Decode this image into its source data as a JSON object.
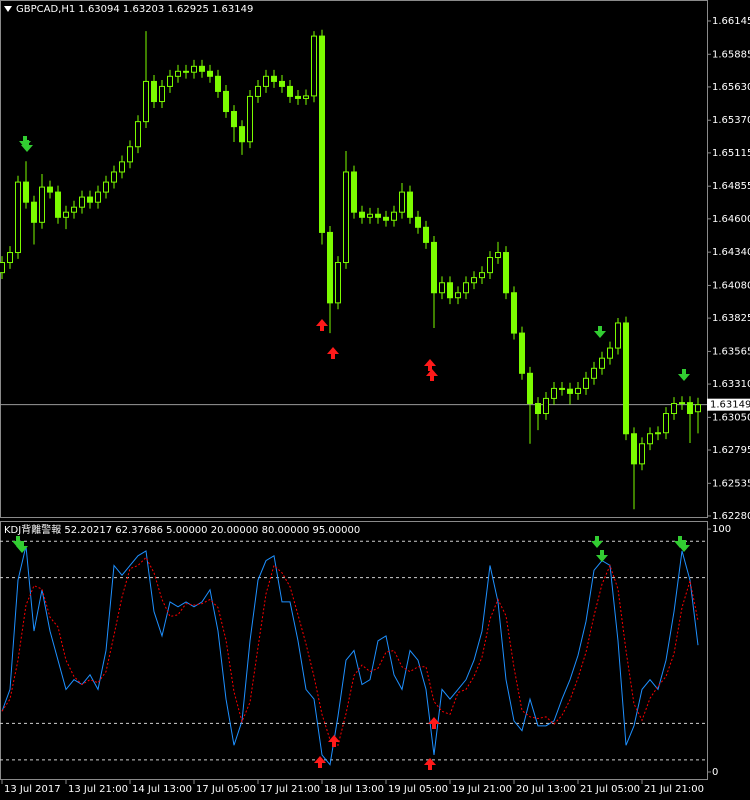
{
  "chart_data": [
    {
      "type": "candlestick",
      "title": "GBPCAD,H1  1.63094 1.63203 1.62925 1.63149",
      "color": "#7CFC00",
      "bull_fill": "#000000",
      "ylim": [
        1.62272,
        1.66301
      ],
      "yticks": [
        {
          "value": 1.66145,
          "label": "1.66145"
        },
        {
          "value": 1.65885,
          "label": "1.65885"
        },
        {
          "value": 1.6563,
          "label": "1.65630"
        },
        {
          "value": 1.6537,
          "label": "1.65370"
        },
        {
          "value": 1.65115,
          "label": "1.65115"
        },
        {
          "value": 1.64855,
          "label": "1.64855"
        },
        {
          "value": 1.646,
          "label": "1.64600"
        },
        {
          "value": 1.6434,
          "label": "1.64340"
        },
        {
          "value": 1.6408,
          "label": "1.64080"
        },
        {
          "value": 1.63825,
          "label": "1.63825"
        },
        {
          "value": 1.63565,
          "label": "1.63565"
        },
        {
          "value": 1.6331,
          "label": "1.63310"
        },
        {
          "value": 1.6305,
          "label": "1.63050"
        },
        {
          "value": 1.62795,
          "label": "1.62795"
        },
        {
          "value": 1.62535,
          "label": "1.62535"
        },
        {
          "value": 1.6228,
          "label": "1.62280"
        }
      ],
      "current_price": 1.63149,
      "open": [
        1.6418,
        1.64259,
        1.64337,
        1.64887,
        1.6473,
        1.64573,
        1.64848,
        1.64809,
        1.64612,
        1.64652,
        1.64691,
        1.6477,
        1.6473,
        1.64809,
        1.64887,
        1.64966,
        1.65045,
        1.65163,
        1.65359,
        1.65673,
        1.65516,
        1.65634,
        1.65713,
        1.65752,
        1.65745,
        1.65791,
        1.65752,
        1.65713,
        1.65595,
        1.65438,
        1.6532,
        1.65202,
        1.65556,
        1.65634,
        1.65713,
        1.65673,
        1.65634,
        1.65556,
        1.6554,
        1.6556,
        1.66027,
        1.64494,
        1.63944,
        1.64259,
        1.64966,
        1.64652,
        1.64612,
        1.64636,
        1.64612,
        1.64589,
        1.64652,
        1.64809,
        1.64612,
        1.64534,
        1.64416,
        1.64023,
        1.64101,
        1.63984,
        1.64023,
        1.64101,
        1.64141,
        1.6418,
        1.64298,
        1.64337,
        1.64023,
        1.63708,
        1.63394,
        1.63158,
        1.6308,
        1.63198,
        1.63276,
        1.6327,
        1.63237,
        1.63276,
        1.63355,
        1.63433,
        1.63512,
        1.63591,
        1.63787,
        1.62922,
        1.62687,
        1.62844,
        1.62922,
        1.6293,
        1.6308,
        1.63158,
        1.63165,
        1.63094
      ],
      "high": [
        1.64309,
        1.64387,
        1.64937,
        1.6505,
        1.6478,
        1.6495,
        1.64898,
        1.64859,
        1.64702,
        1.64741,
        1.6482,
        1.6482,
        1.64859,
        1.64937,
        1.65016,
        1.65095,
        1.65213,
        1.65409,
        1.66066,
        1.65723,
        1.65684,
        1.65763,
        1.65802,
        1.65802,
        1.65841,
        1.65841,
        1.65802,
        1.65763,
        1.65645,
        1.65488,
        1.6537,
        1.65606,
        1.65684,
        1.65763,
        1.65763,
        1.65723,
        1.65684,
        1.65606,
        1.6561,
        1.66066,
        1.66077,
        1.64544,
        1.64309,
        1.6513,
        1.65016,
        1.64702,
        1.64686,
        1.64686,
        1.64662,
        1.64702,
        1.6488,
        1.64859,
        1.64662,
        1.64584,
        1.64466,
        1.64151,
        1.64151,
        1.64073,
        1.64151,
        1.64191,
        1.6423,
        1.64348,
        1.6442,
        1.64387,
        1.64073,
        1.63758,
        1.63444,
        1.63208,
        1.63248,
        1.63326,
        1.63326,
        1.6332,
        1.63326,
        1.63405,
        1.63483,
        1.63562,
        1.63641,
        1.63826,
        1.63837,
        1.62972,
        1.62894,
        1.62972,
        1.6298,
        1.6313,
        1.63208,
        1.63215,
        1.63215,
        1.63203
      ],
      "low": [
        1.6413,
        1.64209,
        1.64287,
        1.6468,
        1.644,
        1.64523,
        1.64759,
        1.64562,
        1.6452,
        1.64602,
        1.64641,
        1.6468,
        1.6468,
        1.64759,
        1.64837,
        1.64916,
        1.64995,
        1.65113,
        1.65309,
        1.65466,
        1.65466,
        1.65584,
        1.65663,
        1.65695,
        1.65695,
        1.65702,
        1.65663,
        1.65545,
        1.65388,
        1.652,
        1.651,
        1.65152,
        1.65506,
        1.65584,
        1.65623,
        1.65584,
        1.65506,
        1.6549,
        1.6549,
        1.6551,
        1.644,
        1.63708,
        1.63894,
        1.64209,
        1.64602,
        1.64562,
        1.64562,
        1.64562,
        1.64539,
        1.64539,
        1.64602,
        1.64562,
        1.64484,
        1.64366,
        1.63748,
        1.63973,
        1.63934,
        1.63934,
        1.63973,
        1.64051,
        1.64091,
        1.6413,
        1.64248,
        1.63973,
        1.63658,
        1.63344,
        1.62844,
        1.6295,
        1.6303,
        1.63148,
        1.6322,
        1.6315,
        1.63187,
        1.63226,
        1.63305,
        1.63383,
        1.63462,
        1.63541,
        1.62872,
        1.62333,
        1.62637,
        1.62794,
        1.62872,
        1.6288,
        1.6303,
        1.63108,
        1.6285,
        1.62925
      ],
      "close": [
        1.64259,
        1.64337,
        1.64887,
        1.6473,
        1.64573,
        1.64848,
        1.64809,
        1.64612,
        1.64652,
        1.64691,
        1.6477,
        1.6473,
        1.64809,
        1.64887,
        1.64966,
        1.65045,
        1.65163,
        1.65359,
        1.65673,
        1.65516,
        1.65634,
        1.65713,
        1.65752,
        1.65745,
        1.65791,
        1.65752,
        1.65713,
        1.65595,
        1.65438,
        1.6532,
        1.65202,
        1.65556,
        1.65634,
        1.65713,
        1.65673,
        1.65634,
        1.65556,
        1.6554,
        1.6556,
        1.66027,
        1.64494,
        1.63944,
        1.64259,
        1.64966,
        1.64652,
        1.64612,
        1.64636,
        1.64612,
        1.64589,
        1.64652,
        1.64809,
        1.64612,
        1.64534,
        1.64416,
        1.64023,
        1.64101,
        1.63984,
        1.64023,
        1.64101,
        1.64141,
        1.6418,
        1.64298,
        1.64337,
        1.64023,
        1.63708,
        1.63394,
        1.63158,
        1.6308,
        1.63198,
        1.63276,
        1.6327,
        1.63237,
        1.63276,
        1.63355,
        1.63433,
        1.63512,
        1.63591,
        1.63787,
        1.62922,
        1.62687,
        1.62844,
        1.62922,
        1.6293,
        1.6308,
        1.63158,
        1.63165,
        1.6308,
        1.63149
      ]
    },
    {
      "type": "line",
      "title": "KDJ背離警報 52.20217 62.37686 5.00000 20.00000 80.00000 95.00000",
      "ylim": [
        -3.3,
        102.9
      ],
      "yticks": [
        0,
        100
      ],
      "levels": [
        5,
        20,
        80,
        95
      ],
      "categories": [
        "13 Jul 2017",
        null,
        null,
        null,
        null,
        null,
        null,
        null,
        "13 Jul 21:00",
        null,
        null,
        null,
        null,
        null,
        null,
        null,
        "14 Jul 13:00",
        null,
        null,
        null,
        null,
        null,
        null,
        null,
        "17 Jul 05:00",
        null,
        null,
        null,
        null,
        null,
        null,
        null,
        "17 Jul 21:00",
        null,
        null,
        null,
        null,
        null,
        null,
        null,
        "18 Jul 13:00",
        null,
        null,
        null,
        null,
        null,
        null,
        null,
        "19 Jul 05:00",
        null,
        null,
        null,
        null,
        null,
        null,
        null,
        "19 Jul 21:00",
        null,
        null,
        null,
        null,
        null,
        null,
        null,
        "20 Jul 13:00",
        null,
        null,
        null,
        null,
        null,
        null,
        null,
        "21 Jul 05:00",
        null,
        null,
        null,
        null,
        null,
        null,
        null,
        "21 Jul 21:00",
        null,
        null,
        null,
        null,
        null,
        null,
        null
      ],
      "series": [
        {
          "color": "#1E90FF",
          "style": "solid",
          "values": [
            25,
            34,
            79,
            93,
            58,
            75,
            58,
            46,
            34,
            38,
            36,
            40,
            34,
            50,
            85,
            81,
            85,
            89,
            91,
            66,
            56,
            70,
            68,
            70,
            68,
            70,
            75,
            58,
            30,
            11,
            21,
            54,
            79,
            87,
            89,
            70,
            70,
            54,
            34,
            30,
            7,
            3,
            23,
            46,
            50,
            36,
            38,
            54,
            56,
            40,
            34,
            50,
            46,
            34,
            7,
            34,
            30,
            34,
            38,
            46,
            58,
            85,
            70,
            38,
            21,
            17,
            30,
            19,
            19,
            21,
            30,
            38,
            48,
            62,
            83,
            87,
            85,
            54,
            11,
            19,
            34,
            38,
            34,
            46,
            66,
            91,
            79,
            52.20217
          ]
        },
        {
          "color": "#FF0000",
          "style": "dashed",
          "values": [
            25,
            30,
            46,
            68.7,
            76.7,
            75.3,
            63.7,
            59.7,
            46,
            39.3,
            36,
            38,
            36.7,
            41.3,
            56.3,
            72,
            83.7,
            85,
            88.3,
            82,
            71,
            64,
            64.7,
            69.3,
            68.7,
            69.3,
            71,
            67.7,
            54.3,
            33,
            20.7,
            28.7,
            51.3,
            73.3,
            85,
            82,
            76.3,
            64.7,
            52.7,
            39.3,
            23.7,
            13.3,
            11,
            24,
            39.7,
            44,
            41.3,
            42.7,
            49.3,
            50,
            43.3,
            41.3,
            43.3,
            43.3,
            29,
            25,
            23.7,
            32.7,
            34,
            39.3,
            47.3,
            63,
            71,
            64.3,
            43,
            25.3,
            22.7,
            22,
            22.7,
            19.7,
            23.3,
            29.7,
            38.7,
            49.3,
            64.3,
            77.3,
            85,
            75.3,
            50,
            28,
            21.3,
            30.3,
            35.3,
            39.3,
            48.7,
            67.7,
            78.7,
            62.37686
          ]
        }
      ]
    }
  ]
}
